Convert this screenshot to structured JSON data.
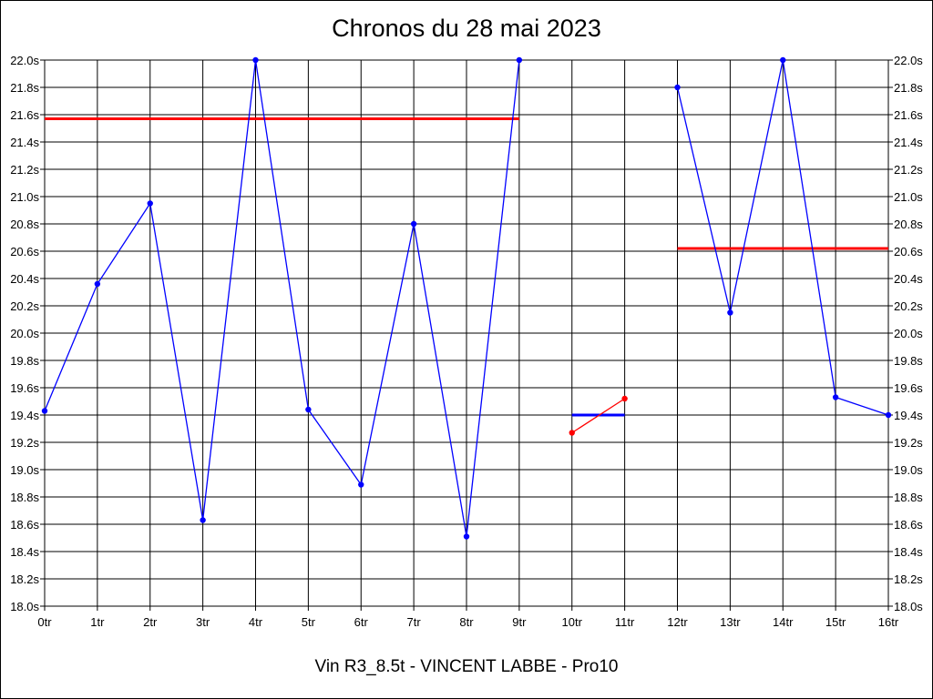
{
  "chart_data": {
    "type": "line",
    "title": "Chronos du 28 mai 2023",
    "subtitle": "Vin R3_8.5t - VINCENT LABBE - Pro10",
    "x_tick_labels": [
      "0tr",
      "1tr",
      "2tr",
      "3tr",
      "4tr",
      "5tr",
      "6tr",
      "7tr",
      "8tr",
      "9tr",
      "10tr",
      "11tr",
      "12tr",
      "13tr",
      "14tr",
      "15tr",
      "16tr"
    ],
    "y_tick_labels": [
      "18.0s",
      "18.2s",
      "18.4s",
      "18.6s",
      "18.8s",
      "19.0s",
      "19.2s",
      "19.4s",
      "19.6s",
      "19.8s",
      "20.0s",
      "20.2s",
      "20.4s",
      "20.6s",
      "20.8s",
      "21.0s",
      "21.2s",
      "21.4s",
      "21.6s",
      "21.8s",
      "22.0s"
    ],
    "xlim": [
      0,
      16
    ],
    "ylim": [
      18.0,
      22.0
    ],
    "grid": true,
    "y_axis_both_sides": true,
    "series": [
      {
        "color": "#0000ff",
        "marker": "dot",
        "segments": [
          [
            [
              0,
              19.43
            ],
            [
              1,
              20.36
            ],
            [
              2,
              20.95
            ],
            [
              3,
              18.63
            ],
            [
              4,
              22.0
            ],
            [
              5,
              19.44
            ],
            [
              6,
              18.89
            ],
            [
              7,
              20.8
            ],
            [
              8,
              18.51
            ],
            [
              9,
              22.0
            ]
          ],
          [
            [
              12,
              21.8
            ],
            [
              13,
              20.15
            ],
            [
              14,
              22.0
            ],
            [
              15,
              19.53
            ],
            [
              16,
              19.4
            ]
          ]
        ]
      },
      {
        "color": "#ff0000",
        "marker": "dot",
        "segments": [
          [
            [
              10,
              19.27
            ],
            [
              11,
              19.52
            ]
          ]
        ]
      }
    ],
    "reference_lines": [
      {
        "color": "#ff0000",
        "x": [
          0,
          9
        ],
        "y": 21.57
      },
      {
        "color": "#0000ff",
        "x": [
          10,
          11
        ],
        "y": 19.4
      },
      {
        "color": "#ff0000",
        "x": [
          12,
          16
        ],
        "y": 20.62
      }
    ]
  }
}
